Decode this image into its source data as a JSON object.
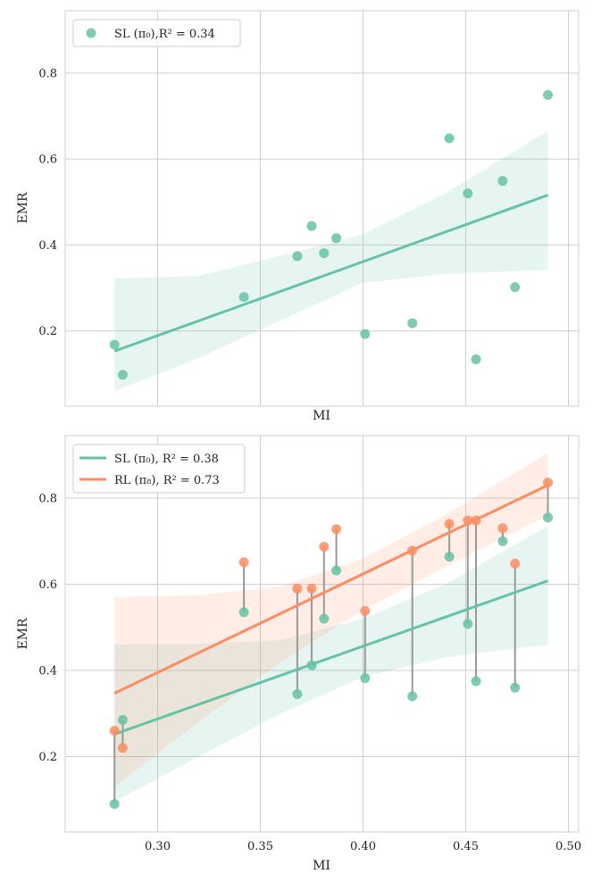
{
  "colors": {
    "sl": "#66c2a5",
    "rl": "#fc8d62",
    "connector": "#999999"
  },
  "chart_data": [
    {
      "type": "scatter",
      "xlabel": "MI",
      "ylabel": "EMR",
      "xlim": [
        0.255,
        0.505
      ],
      "ylim": [
        0.025,
        0.945
      ],
      "xticks": [
        0.3,
        0.35,
        0.4,
        0.45,
        0.5
      ],
      "yticks": [
        0.2,
        0.4,
        0.6,
        0.8
      ],
      "show_xticklabels": false,
      "grid": true,
      "legend_position": "top-left",
      "series": [
        {
          "name": "SL (π₀),R² = 0.34",
          "points": [
            [
              0.279,
              0.168
            ],
            [
              0.283,
              0.098
            ],
            [
              0.342,
              0.279
            ],
            [
              0.368,
              0.374
            ],
            [
              0.375,
              0.444
            ],
            [
              0.381,
              0.381
            ],
            [
              0.387,
              0.416
            ],
            [
              0.401,
              0.193
            ],
            [
              0.424,
              0.218
            ],
            [
              0.442,
              0.648
            ],
            [
              0.451,
              0.52
            ],
            [
              0.455,
              0.134
            ],
            [
              0.468,
              0.549
            ],
            [
              0.474,
              0.302
            ],
            [
              0.49,
              0.749
            ]
          ],
          "fit": {
            "x": [
              0.279,
              0.49
            ],
            "y": [
              0.153,
              0.516
            ]
          },
          "ci": {
            "x": [
              0.279,
              0.32,
              0.36,
              0.4,
              0.44,
              0.49
            ],
            "lower": [
              0.06,
              0.137,
              0.225,
              0.312,
              0.333,
              0.342
            ],
            "upper": [
              0.322,
              0.328,
              0.375,
              0.425,
              0.52,
              0.665
            ]
          }
        }
      ]
    },
    {
      "type": "scatter",
      "xlabel": "MI",
      "ylabel": "EMR",
      "xlim": [
        0.255,
        0.505
      ],
      "ylim": [
        0.025,
        0.945
      ],
      "xticks": [
        0.3,
        0.35,
        0.4,
        0.45,
        0.5
      ],
      "xticklabels": [
        "0.30",
        "0.35",
        "0.40",
        "0.45",
        "0.50"
      ],
      "yticks": [
        0.2,
        0.4,
        0.6,
        0.8
      ],
      "show_xticklabels": true,
      "grid": true,
      "legend_position": "top-left",
      "paired": true,
      "series": [
        {
          "name": "SL (π₀), R² = 0.38",
          "points": [
            [
              0.279,
              0.09
            ],
            [
              0.283,
              0.285
            ],
            [
              0.342,
              0.535
            ],
            [
              0.368,
              0.345
            ],
            [
              0.375,
              0.412
            ],
            [
              0.381,
              0.52
            ],
            [
              0.387,
              0.632
            ],
            [
              0.401,
              0.382
            ],
            [
              0.424,
              0.34
            ],
            [
              0.442,
              0.664
            ],
            [
              0.451,
              0.508
            ],
            [
              0.455,
              0.375
            ],
            [
              0.468,
              0.7
            ],
            [
              0.474,
              0.36
            ],
            [
              0.49,
              0.755
            ]
          ],
          "fit": {
            "x": [
              0.279,
              0.49
            ],
            "y": [
              0.252,
              0.608
            ]
          },
          "ci": {
            "x": [
              0.279,
              0.32,
              0.36,
              0.4,
              0.44,
              0.49
            ],
            "lower": [
              0.095,
              0.2,
              0.3,
              0.385,
              0.43,
              0.46
            ],
            "upper": [
              0.46,
              0.462,
              0.47,
              0.52,
              0.6,
              0.735
            ]
          }
        },
        {
          "name": "RL (π₈), R² = 0.73",
          "points": [
            [
              0.279,
              0.26
            ],
            [
              0.283,
              0.22
            ],
            [
              0.342,
              0.651
            ],
            [
              0.368,
              0.59
            ],
            [
              0.375,
              0.59
            ],
            [
              0.381,
              0.687
            ],
            [
              0.387,
              0.728
            ],
            [
              0.401,
              0.538
            ],
            [
              0.424,
              0.678
            ],
            [
              0.442,
              0.74
            ],
            [
              0.451,
              0.748
            ],
            [
              0.455,
              0.748
            ],
            [
              0.468,
              0.73
            ],
            [
              0.474,
              0.648
            ],
            [
              0.49,
              0.836
            ]
          ],
          "fit": {
            "x": [
              0.279,
              0.49
            ],
            "y": [
              0.347,
              0.83
            ]
          },
          "ci": {
            "x": [
              0.279,
              0.32,
              0.36,
              0.4,
              0.44,
              0.49
            ],
            "lower": [
              0.13,
              0.28,
              0.42,
              0.54,
              0.64,
              0.76
            ],
            "upper": [
              0.57,
              0.575,
              0.595,
              0.66,
              0.76,
              0.905
            ]
          }
        }
      ]
    }
  ]
}
